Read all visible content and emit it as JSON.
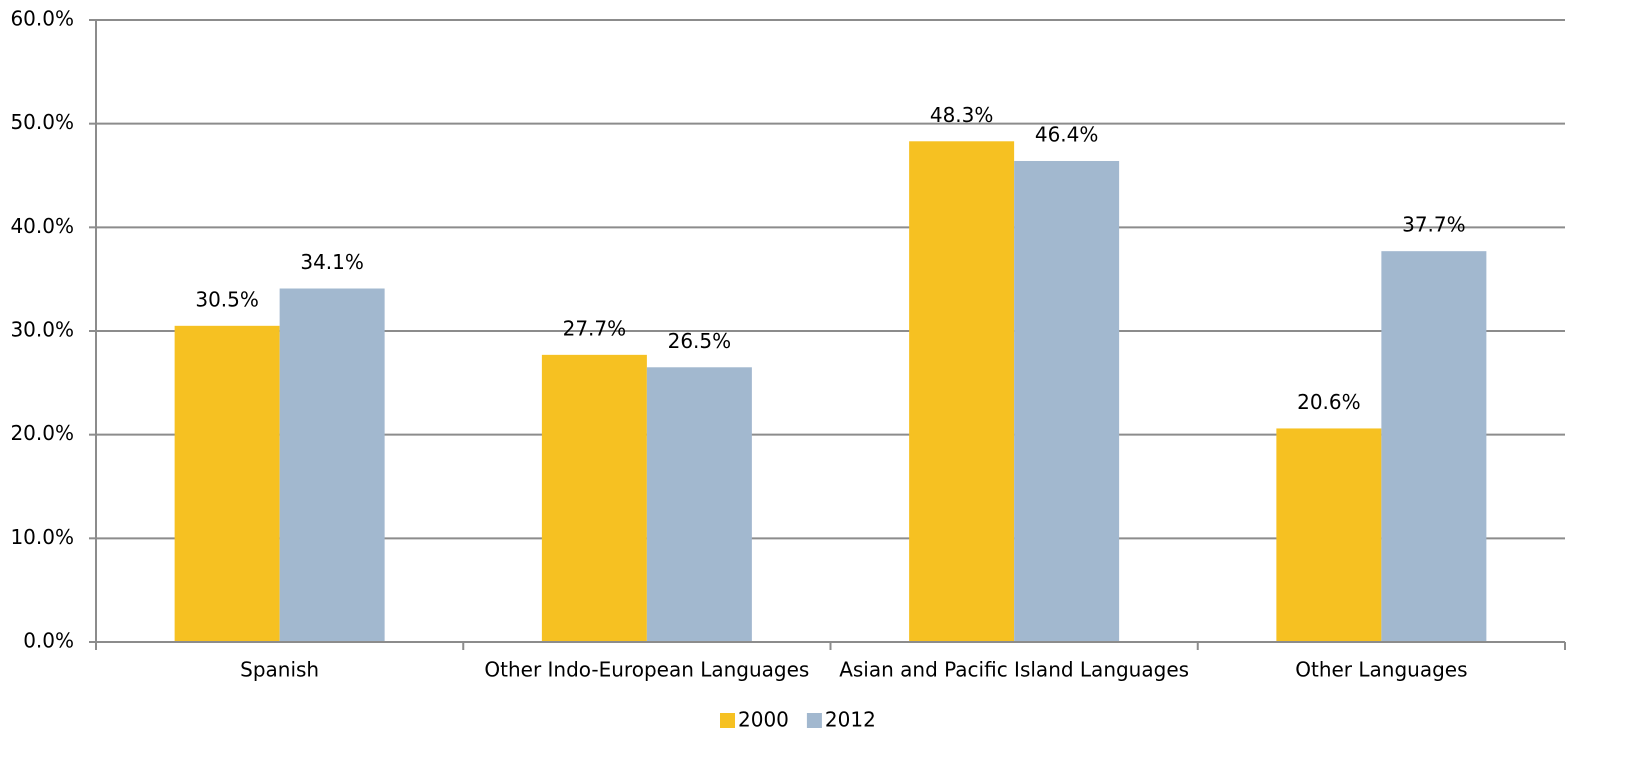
{
  "chart_data": {
    "type": "bar",
    "categories": [
      "Spanish",
      "Other Indo-European Languages",
      "Asian and Pacific Island Languages",
      "Other Languages"
    ],
    "series": [
      {
        "name": "2000",
        "color": "#f6c122",
        "values": [
          30.5,
          27.7,
          48.3,
          20.6
        ],
        "value_labels": [
          "30.5%",
          "27.7%",
          "48.3%",
          "20.6%"
        ]
      },
      {
        "name": "2012",
        "color": "#a2b8cf",
        "values": [
          34.1,
          26.5,
          46.4,
          37.7
        ],
        "value_labels": [
          "34.1%",
          "26.5%",
          "46.4%",
          "37.7%"
        ]
      }
    ],
    "ylim": [
      0,
      60
    ],
    "yticks": [
      {
        "value": 0,
        "label": "0.0%"
      },
      {
        "value": 10,
        "label": "10.0%"
      },
      {
        "value": 20,
        "label": "20.0%"
      },
      {
        "value": 30,
        "label": "30.0%"
      },
      {
        "value": 40,
        "label": "40.0%"
      },
      {
        "value": 50,
        "label": "50.0%"
      },
      {
        "value": 60,
        "label": "60.0%"
      }
    ],
    "grid": true,
    "legend": "bottom"
  }
}
